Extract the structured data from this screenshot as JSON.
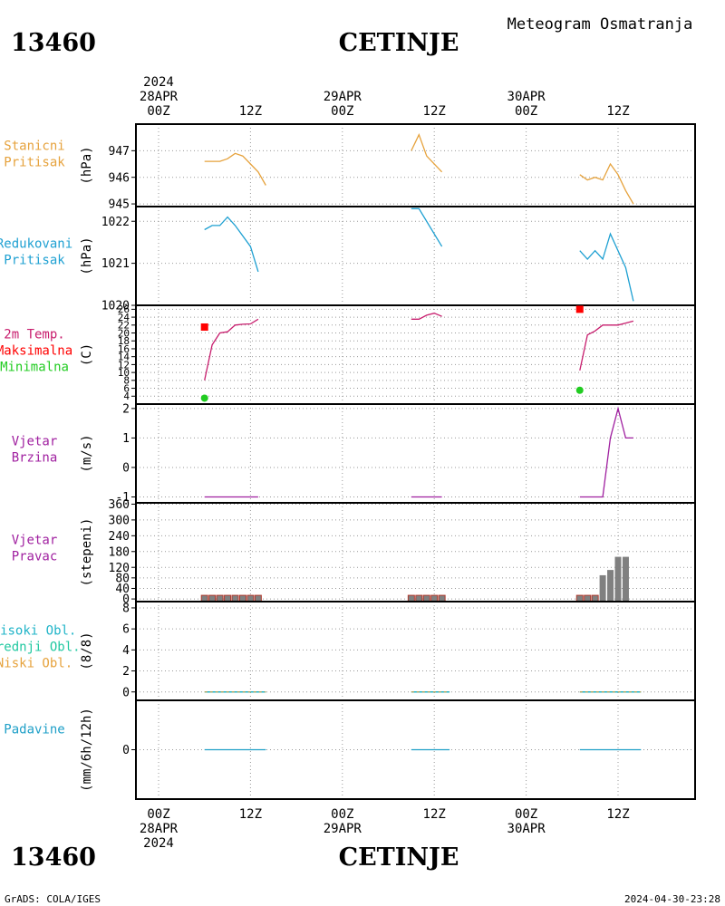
{
  "header": {
    "station_id": "13460",
    "station_name": "CETINJE",
    "subtitle": "Meteogram Osmatranja"
  },
  "footer": {
    "credit": "GrADS: COLA/IGES",
    "timestamp": "2024-04-30-23:28"
  },
  "time_axis": {
    "top_labels": [
      [
        "2024",
        "28APR",
        "00Z"
      ],
      [
        "12Z"
      ],
      [
        "29APR",
        "00Z"
      ],
      [
        "12Z"
      ],
      [
        "30APR",
        "00Z"
      ],
      [
        "12Z"
      ]
    ],
    "bottom_labels": [
      [
        "00Z",
        "28APR",
        "2024"
      ],
      [
        "12Z"
      ],
      [
        "00Z",
        "29APR"
      ],
      [
        "12Z"
      ],
      [
        "00Z",
        "30APR"
      ],
      [
        "12Z"
      ]
    ]
  },
  "colors": {
    "pressure_station": "#e6a23c",
    "pressure_reduced": "#1ea0d2",
    "temperature": "#c81e6e",
    "tmax": "#ff0000",
    "tmin": "#22cc22",
    "wind": "#a020a0",
    "bars": "#808080",
    "cloud_high": "#20b4c8",
    "cloud_mid": "#20c8a0",
    "cloud_low": "#e6a23c",
    "precip": "#20a0c8"
  },
  "chart_data": [
    {
      "type": "line",
      "panel": "station_pressure",
      "label_lines": [
        "Stanicni",
        "Pritisak"
      ],
      "ylabel": "(hPa)",
      "ylim": [
        944.9,
        948.0
      ],
      "yticks": [
        945,
        946,
        947
      ],
      "x_unit": "hours since 28APR 00Z",
      "segments": [
        [
          [
            6,
            946.6
          ],
          [
            8,
            946.6
          ],
          [
            9,
            946.7
          ],
          [
            10,
            946.9
          ],
          [
            11,
            946.8
          ],
          [
            12,
            946.5
          ],
          [
            13,
            946.2
          ],
          [
            14,
            945.7
          ]
        ],
        [
          [
            33,
            947.0
          ],
          [
            34,
            947.6
          ],
          [
            35,
            946.8
          ],
          [
            37,
            946.2
          ]
        ],
        [
          [
            55,
            946.1
          ],
          [
            56,
            945.9
          ],
          [
            57,
            946.0
          ],
          [
            58,
            945.9
          ],
          [
            59,
            946.5
          ],
          [
            60,
            946.1
          ],
          [
            61,
            945.5
          ],
          [
            62,
            945.0
          ]
        ]
      ]
    },
    {
      "type": "line",
      "panel": "reduced_pressure",
      "label_lines": [
        "Redukovani",
        "Pritisak"
      ],
      "ylabel": "(hPa)",
      "ylim": [
        1020.0,
        1022.35
      ],
      "yticks": [
        1020,
        1021,
        1022
      ],
      "x_unit": "hours since 28APR 00Z",
      "segments": [
        [
          [
            6,
            1021.8
          ],
          [
            7,
            1021.9
          ],
          [
            8,
            1021.9
          ],
          [
            9,
            1022.1
          ],
          [
            10,
            1021.9
          ],
          [
            12,
            1021.4
          ],
          [
            13,
            1020.8
          ]
        ],
        [
          [
            33,
            1022.3
          ],
          [
            34,
            1022.3
          ],
          [
            37,
            1021.4
          ]
        ],
        [
          [
            55,
            1021.3
          ],
          [
            56,
            1021.1
          ],
          [
            57,
            1021.3
          ],
          [
            58,
            1021.1
          ],
          [
            59,
            1021.7
          ],
          [
            61,
            1020.9
          ],
          [
            62,
            1020.1
          ]
        ]
      ]
    },
    {
      "type": "line",
      "panel": "temperature",
      "label_lines": [
        "2m Temp.",
        "Maksimalna",
        "Minimalna"
      ],
      "ylabel": "(C)",
      "ylim": [
        2,
        27
      ],
      "yticks": [
        4,
        6,
        8,
        10,
        12,
        14,
        16,
        18,
        20,
        22,
        24,
        26
      ],
      "x_unit": "hours since 28APR 00Z",
      "segments": [
        [
          [
            6,
            8
          ],
          [
            7,
            17
          ],
          [
            8,
            20
          ],
          [
            9,
            20.3
          ],
          [
            10,
            22
          ],
          [
            11,
            22.2
          ],
          [
            12,
            22.3
          ],
          [
            13,
            23.5
          ]
        ],
        [
          [
            33,
            23.5
          ],
          [
            34,
            23.5
          ],
          [
            35,
            24.5
          ],
          [
            36,
            25
          ],
          [
            37,
            24.2
          ]
        ],
        [
          [
            55,
            10.5
          ],
          [
            56,
            19.5
          ],
          [
            57,
            20.5
          ],
          [
            58,
            22
          ],
          [
            59,
            22
          ],
          [
            60,
            22
          ],
          [
            61,
            22.5
          ],
          [
            62,
            23
          ]
        ]
      ],
      "tmax": [
        [
          6,
          21.5
        ],
        [
          55,
          26
        ]
      ],
      "tmin": [
        [
          6,
          3.5
        ],
        [
          55,
          5.5
        ]
      ]
    },
    {
      "type": "line",
      "panel": "wind_speed",
      "label_lines": [
        "Vjetar",
        "Brzina"
      ],
      "ylabel": "(m/s)",
      "ylim": [
        -1.2,
        2.15
      ],
      "yticks": [
        -1,
        0,
        1,
        2
      ],
      "x_unit": "hours since 28APR 00Z",
      "segments": [
        [
          [
            6,
            -1
          ],
          [
            13,
            -1
          ]
        ],
        [
          [
            33,
            -1
          ],
          [
            37,
            -1
          ]
        ],
        [
          [
            55,
            -1
          ],
          [
            58,
            -1
          ],
          [
            59,
            1
          ],
          [
            60,
            2
          ],
          [
            61,
            1
          ],
          [
            62,
            1
          ]
        ]
      ]
    },
    {
      "type": "bar",
      "panel": "wind_direction",
      "label_lines": [
        "Vjetar",
        "Pravac"
      ],
      "ylabel": "(stepeni)",
      "ylim": [
        -10,
        365
      ],
      "yticks": [
        0,
        40,
        80,
        120,
        180,
        240,
        300,
        360
      ],
      "x_unit": "hours since 28APR 00Z",
      "bars": [
        [
          6,
          0
        ],
        [
          7,
          0
        ],
        [
          8,
          0
        ],
        [
          9,
          0
        ],
        [
          10,
          0
        ],
        [
          11,
          0
        ],
        [
          12,
          0
        ],
        [
          13,
          0
        ],
        [
          33,
          0
        ],
        [
          34,
          0
        ],
        [
          35,
          0
        ],
        [
          36,
          0
        ],
        [
          37,
          0
        ],
        [
          55,
          0
        ],
        [
          56,
          0
        ],
        [
          57,
          0
        ],
        [
          58,
          90
        ],
        [
          59,
          110
        ],
        [
          60,
          160
        ],
        [
          61,
          160
        ]
      ]
    },
    {
      "type": "line",
      "panel": "cloud_cover",
      "label_lines": [
        "Visoki Obl.",
        "Srednji Obl.",
        "Niski Obl."
      ],
      "ylabel": "(8/8)",
      "ylim": [
        -0.8,
        8.6
      ],
      "yticks": [
        0,
        2,
        4,
        6,
        8
      ],
      "x_unit": "hours since 28APR 00Z",
      "segments": [
        [
          [
            6,
            0
          ],
          [
            14,
            0
          ]
        ],
        [
          [
            33,
            0
          ],
          [
            38,
            0
          ]
        ],
        [
          [
            55,
            0
          ],
          [
            63,
            0
          ]
        ]
      ]
    },
    {
      "type": "line",
      "panel": "precipitation",
      "label_lines": [
        "Padavine"
      ],
      "ylabel": "(mm/6h/12h)",
      "ylim": [
        -1,
        1
      ],
      "yticks": [
        0
      ],
      "x_unit": "hours since 28APR 00Z",
      "segments": [
        [
          [
            6,
            0
          ],
          [
            14,
            0
          ]
        ],
        [
          [
            33,
            0
          ],
          [
            38,
            0
          ]
        ],
        [
          [
            55,
            0
          ],
          [
            63,
            0
          ]
        ]
      ]
    }
  ]
}
